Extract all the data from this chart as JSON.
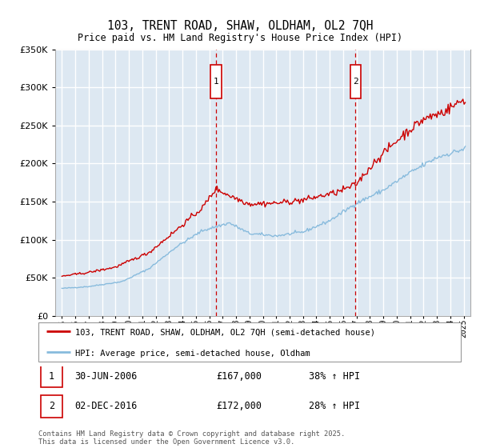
{
  "title": "103, TRENT ROAD, SHAW, OLDHAM, OL2 7QH",
  "subtitle": "Price paid vs. HM Land Registry's House Price Index (HPI)",
  "legend_line1": "103, TRENT ROAD, SHAW, OLDHAM, OL2 7QH (semi-detached house)",
  "legend_line2": "HPI: Average price, semi-detached house, Oldham",
  "annotation1_label": "1",
  "annotation1_date": "30-JUN-2006",
  "annotation1_price": "£167,000",
  "annotation1_hpi": "38% ↑ HPI",
  "annotation2_label": "2",
  "annotation2_date": "02-DEC-2016",
  "annotation2_price": "£172,000",
  "annotation2_hpi": "28% ↑ HPI",
  "footer": "Contains HM Land Registry data © Crown copyright and database right 2025.\nThis data is licensed under the Open Government Licence v3.0.",
  "vline1_x": 2006.5,
  "vline2_x": 2016.92,
  "ylim": [
    0,
    350000
  ],
  "xlim": [
    1994.5,
    2025.5
  ],
  "yticks": [
    0,
    50000,
    100000,
    150000,
    200000,
    250000,
    300000,
    350000
  ],
  "background_color": "#dde8f2",
  "grid_color": "#ffffff",
  "red_color": "#cc0000",
  "blue_color": "#88bbdd"
}
